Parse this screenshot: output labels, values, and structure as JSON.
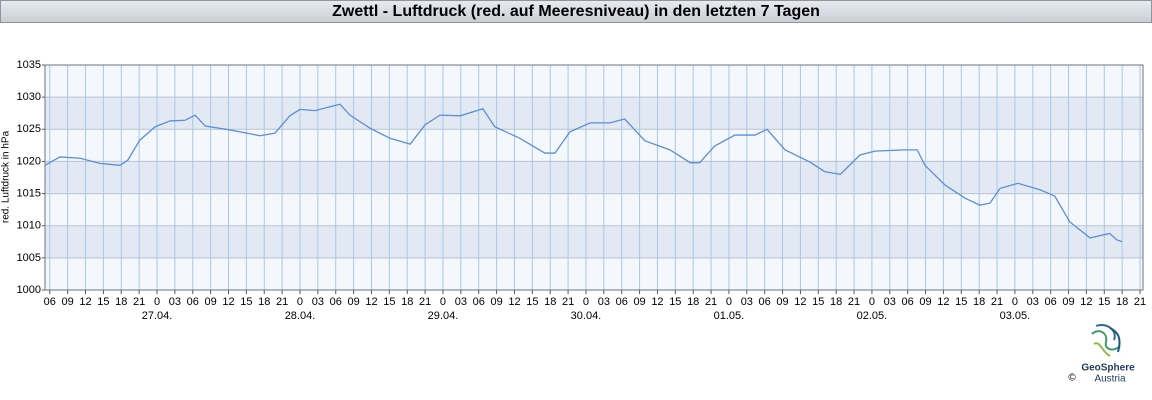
{
  "chart_data": {
    "type": "line",
    "title": "Zwettl - Luftdruck (red. auf Meeresniveau) in den letzten 7 Tagen",
    "y_label": "red. Luftdruck in hPa",
    "x": [
      5.2,
      7.7,
      11.1,
      14.4,
      17.8,
      19.1,
      21.1,
      23.7,
      26.2,
      28.7,
      30.4,
      32.1,
      36.3,
      41.3,
      43.8,
      46.3,
      48.0,
      50.5,
      54.7,
      56.4,
      59.7,
      63.1,
      66.5,
      69.0,
      71.5,
      74.9,
      78.7,
      80.7,
      84.9,
      89.1,
      90.8,
      93.3,
      96.7,
      100.0,
      102.5,
      105.9,
      110.1,
      113.5,
      115.1,
      117.6,
      121.0,
      124.4,
      126.4,
      129.4,
      133.6,
      136.1,
      138.7,
      142.0,
      144.5,
      149.5,
      151.6,
      152.9,
      156.3,
      159.6,
      162.1,
      163.8,
      165.5,
      168.5,
      172.2,
      174.7,
      177.2,
      180.6,
      183.9,
      185.1,
      186.0
    ],
    "series": [
      {
        "name": "red. Luftdruck",
        "color": "#5b8fd9",
        "values": [
          1019.4,
          1020.7,
          1020.5,
          1019.7,
          1019.4,
          1020.2,
          1023.3,
          1025.4,
          1026.3,
          1026.4,
          1027.2,
          1025.5,
          1024.9,
          1024.0,
          1024.4,
          1027.1,
          1028.1,
          1027.9,
          1028.9,
          1027.2,
          1025.2,
          1023.6,
          1022.7,
          1025.7,
          1027.2,
          1027.1,
          1028.2,
          1025.4,
          1023.6,
          1021.3,
          1021.3,
          1024.6,
          1026.0,
          1026.0,
          1026.6,
          1023.2,
          1021.8,
          1019.8,
          1019.8,
          1022.4,
          1024.1,
          1024.1,
          1025.0,
          1021.8,
          1019.9,
          1018.4,
          1018.0,
          1021.0,
          1021.6,
          1021.8,
          1021.8,
          1019.4,
          1016.3,
          1014.3,
          1013.2,
          1013.5,
          1015.8,
          1016.6,
          1015.6,
          1014.6,
          1010.6,
          1008.1,
          1008.8,
          1007.8,
          1007.5
        ]
      }
    ],
    "ylim": [
      1000,
      1035
    ],
    "yticks": [
      1000,
      1005,
      1010,
      1015,
      1020,
      1025,
      1030,
      1035
    ],
    "xlim": [
      5.2,
      189.5
    ],
    "xticks": [
      {
        "value": 6,
        "label": "06"
      },
      {
        "value": 9,
        "label": "09"
      },
      {
        "value": 12,
        "label": "12"
      },
      {
        "value": 15,
        "label": "15"
      },
      {
        "value": 18,
        "label": "18"
      },
      {
        "value": 21,
        "label": "21"
      },
      {
        "value": 24,
        "label": "0"
      },
      {
        "value": 27,
        "label": "03"
      },
      {
        "value": 30,
        "label": "06"
      },
      {
        "value": 33,
        "label": "09"
      },
      {
        "value": 36,
        "label": "12"
      },
      {
        "value": 39,
        "label": "15"
      },
      {
        "value": 42,
        "label": "18"
      },
      {
        "value": 45,
        "label": "21"
      },
      {
        "value": 48,
        "label": "0"
      },
      {
        "value": 51,
        "label": "03"
      },
      {
        "value": 54,
        "label": "06"
      },
      {
        "value": 57,
        "label": "09"
      },
      {
        "value": 60,
        "label": "12"
      },
      {
        "value": 63,
        "label": "15"
      },
      {
        "value": 66,
        "label": "18"
      },
      {
        "value": 69,
        "label": "21"
      },
      {
        "value": 72,
        "label": "0"
      },
      {
        "value": 75,
        "label": "03"
      },
      {
        "value": 78,
        "label": "06"
      },
      {
        "value": 81,
        "label": "09"
      },
      {
        "value": 84,
        "label": "12"
      },
      {
        "value": 87,
        "label": "15"
      },
      {
        "value": 90,
        "label": "18"
      },
      {
        "value": 93,
        "label": "21"
      },
      {
        "value": 96,
        "label": "0"
      },
      {
        "value": 99,
        "label": "03"
      },
      {
        "value": 102,
        "label": "06"
      },
      {
        "value": 105,
        "label": "09"
      },
      {
        "value": 108,
        "label": "12"
      },
      {
        "value": 111,
        "label": "15"
      },
      {
        "value": 114,
        "label": "18"
      },
      {
        "value": 117,
        "label": "21"
      },
      {
        "value": 120,
        "label": "0"
      },
      {
        "value": 123,
        "label": "03"
      },
      {
        "value": 126,
        "label": "06"
      },
      {
        "value": 129,
        "label": "09"
      },
      {
        "value": 132,
        "label": "12"
      },
      {
        "value": 135,
        "label": "15"
      },
      {
        "value": 138,
        "label": "18"
      },
      {
        "value": 141,
        "label": "21"
      },
      {
        "value": 144,
        "label": "0"
      },
      {
        "value": 147,
        "label": "03"
      },
      {
        "value": 150,
        "label": "06"
      },
      {
        "value": 153,
        "label": "09"
      },
      {
        "value": 156,
        "label": "12"
      },
      {
        "value": 159,
        "label": "15"
      },
      {
        "value": 162,
        "label": "18"
      },
      {
        "value": 165,
        "label": "21"
      },
      {
        "value": 168,
        "label": "0"
      },
      {
        "value": 171,
        "label": "03"
      },
      {
        "value": 174,
        "label": "06"
      },
      {
        "value": 177,
        "label": "09"
      },
      {
        "value": 180,
        "label": "12"
      },
      {
        "value": 183,
        "label": "15"
      },
      {
        "value": 186,
        "label": "18"
      },
      {
        "value": 189,
        "label": "21"
      }
    ],
    "date_labels": [
      {
        "value": 24,
        "label": "27.04."
      },
      {
        "value": 48,
        "label": "28.04."
      },
      {
        "value": 72,
        "label": "29.04."
      },
      {
        "value": 96,
        "label": "30.04."
      },
      {
        "value": 120,
        "label": "01.05."
      },
      {
        "value": 144,
        "label": "02.05."
      },
      {
        "value": 168,
        "label": "03.05."
      }
    ],
    "grid": true,
    "logo": {
      "name": "GeoSphere",
      "country": "Austria",
      "copyright": "©"
    }
  }
}
